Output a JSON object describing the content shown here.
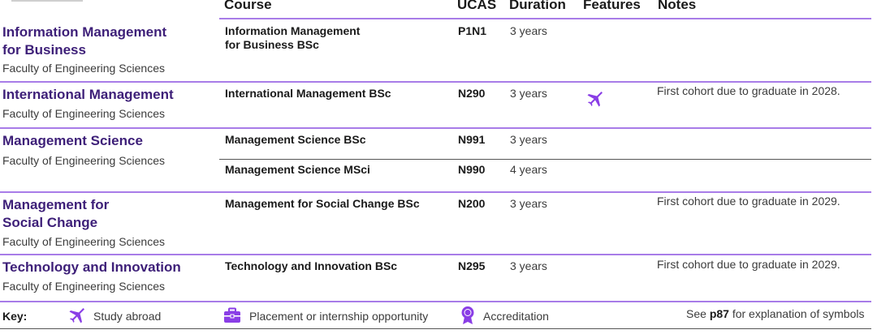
{
  "headers": {
    "course": "Course",
    "ucas": "UCAS",
    "duration": "Duration",
    "features": "Features",
    "notes": "Notes"
  },
  "rows": [
    {
      "subject": [
        "Information Management",
        "for Business"
      ],
      "faculty": "Faculty of Engineering Sciences",
      "courses": [
        {
          "name": [
            "Information Management",
            "for Business BSc"
          ],
          "ucas": "P1N1",
          "duration": "3 years"
        }
      ],
      "features": [],
      "note": ""
    },
    {
      "subject": [
        "International Management"
      ],
      "faculty": "Faculty of Engineering Sciences",
      "courses": [
        {
          "name": [
            "International Management BSc"
          ],
          "ucas": "N290",
          "duration": "3 years"
        }
      ],
      "features": [
        "plane-icon"
      ],
      "note": "First cohort due to graduate in 2028."
    },
    {
      "subject": [
        "Management Science"
      ],
      "faculty": "Faculty of Engineering Sciences",
      "courses": [
        {
          "name": [
            "Management Science BSc"
          ],
          "ucas": "N991",
          "duration": "3 years"
        },
        {
          "name": [
            "Management Science MSci"
          ],
          "ucas": "N990",
          "duration": "4 years"
        }
      ],
      "features": [],
      "note": ""
    },
    {
      "subject": [
        "Management for",
        "Social Change"
      ],
      "faculty": "Faculty of Engineering Sciences",
      "courses": [
        {
          "name": [
            "Management for Social Change BSc"
          ],
          "ucas": "N200",
          "duration": "3 years"
        }
      ],
      "features": [],
      "note": "First cohort due to graduate in 2029."
    },
    {
      "subject": [
        "Technology and Innovation"
      ],
      "faculty": "Faculty of Engineering Sciences",
      "courses": [
        {
          "name": [
            "Technology and Innovation BSc"
          ],
          "ucas": "N295",
          "duration": "3 years"
        }
      ],
      "features": [],
      "note": "First cohort due to graduate in 2029."
    }
  ],
  "key": {
    "label": "Key:",
    "items": [
      {
        "icon": "plane-icon",
        "text": "Study abroad"
      },
      {
        "icon": "briefcase-icon",
        "text": "Placement or internship opportunity"
      },
      {
        "icon": "rosette-icon",
        "text": "Accreditation"
      }
    ],
    "see": "See",
    "page": "p87",
    "explanation": "for explanation of symbols"
  },
  "colors": {
    "subject": "#3d1f78",
    "rule": "#a87ce8",
    "icon": "#8a3ee6"
  }
}
